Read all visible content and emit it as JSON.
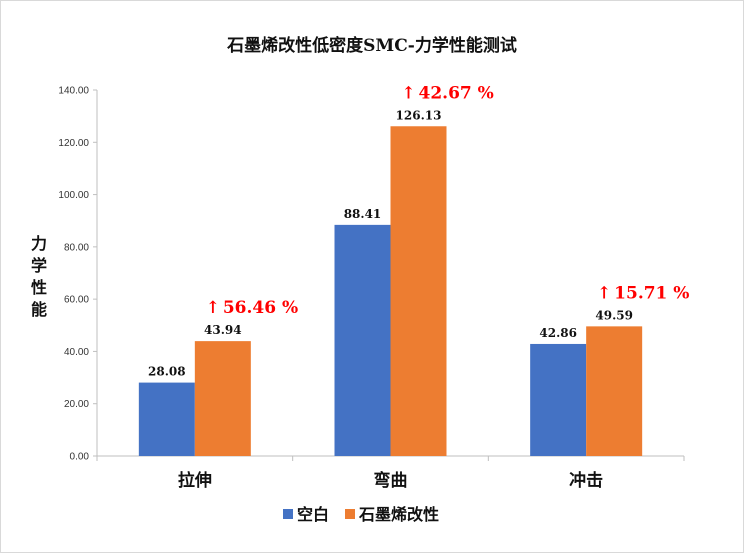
{
  "chart_data": {
    "type": "bar",
    "title": "石墨烯改性低密度SMC-力学性能测试",
    "ylabel": "力学性能",
    "ylabel_chars": [
      "力",
      "学",
      "性",
      "能"
    ],
    "categories": [
      "拉伸",
      "弯曲",
      "冲击"
    ],
    "ylim": [
      0,
      140
    ],
    "yticks": [
      "0.00",
      "20.00",
      "40.00",
      "60.00",
      "80.00",
      "100.00",
      "120.00",
      "140.00"
    ],
    "grid": false,
    "legend_position": "bottom",
    "series": [
      {
        "name": "空白",
        "color": "#4472c4",
        "values": [
          28.08,
          88.41,
          42.86
        ],
        "labels": [
          "28.08",
          "88.41",
          "42.86"
        ]
      },
      {
        "name": "石墨烯改性",
        "color": "#ed7d31",
        "values": [
          43.94,
          126.13,
          49.59
        ],
        "labels": [
          "43.94",
          "126.13",
          "49.59"
        ]
      }
    ],
    "annotations": [
      {
        "category": "拉伸",
        "arrow": "↑",
        "text": "56.46 %",
        "color": "#ff0000"
      },
      {
        "category": "弯曲",
        "arrow": "↑",
        "text": "42.67 %",
        "color": "#ff0000"
      },
      {
        "category": "冲击",
        "arrow": "↑",
        "text": "15.71 %",
        "color": "#ff0000"
      }
    ]
  }
}
